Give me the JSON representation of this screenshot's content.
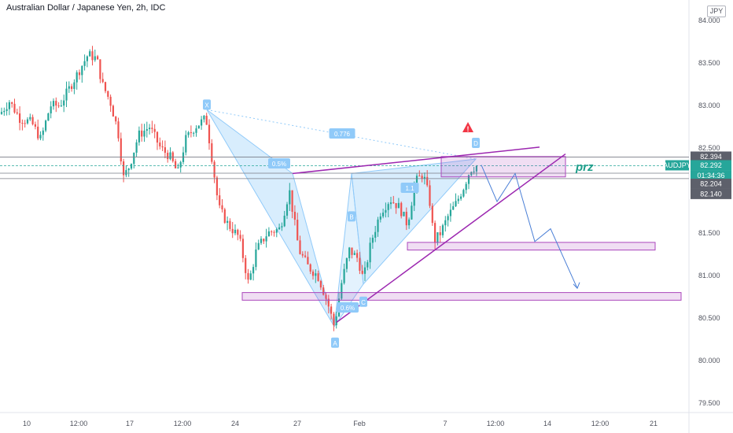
{
  "header": {
    "symbol_title": "Australian Dollar / Japanese Yen, 2h, IDC",
    "currency": "JPY"
  },
  "chart_data": {
    "type": "candlestick",
    "title": "Australian Dollar / Japanese Yen, 2h, IDC",
    "ylim": [
      79.35,
      84.1
    ],
    "y_ticks": [
      84.0,
      83.5,
      83.0,
      82.5,
      81.5,
      81.0,
      80.5,
      80.0,
      79.5
    ],
    "y_tick_labels": [
      "84.000",
      "83.500",
      "83.000",
      "82.500",
      "81.500",
      "81.000",
      "80.500",
      "80.000",
      "79.500"
    ],
    "x_tick_labels": [
      "10",
      "12:00",
      "17",
      "12:00",
      "24",
      "27",
      "Feb",
      "7",
      "12:00",
      "14",
      "12:00",
      "21"
    ],
    "price_lines": [
      82.394,
      82.292,
      82.204,
      82.14
    ],
    "price_labels": [
      {
        "text": "82.394",
        "value": 82.394,
        "color": "#5d606b"
      },
      {
        "text": "AUDJPY",
        "value": 82.292,
        "color": "#26a69a"
      },
      {
        "text": "82.292",
        "value": 82.292,
        "color": "#26a69a"
      },
      {
        "text": "01:34:36",
        "value": 82.292,
        "color": "#26a69a"
      },
      {
        "text": "82.204",
        "value": 82.204,
        "color": "#5d606b"
      },
      {
        "text": "82.140",
        "value": 82.14,
        "color": "#5d606b"
      }
    ],
    "pattern_points": [
      {
        "label": "X",
        "value": 82.95
      },
      {
        "label": "A",
        "value": 80.4
      },
      {
        "label": "B",
        "value": 82.2
      },
      {
        "label": "C",
        "value": 80.9
      },
      {
        "label": "D",
        "value": 82.37
      }
    ],
    "ratios": [
      "0.776",
      "0.5%",
      "0.6%",
      "1.1"
    ],
    "zones": [
      {
        "label": "prz",
        "top": 82.4,
        "bottom": 82.16
      },
      {
        "label": "",
        "top": 81.39,
        "bottom": 81.3
      },
      {
        "label": "",
        "top": 80.8,
        "bottom": 80.71
      }
    ],
    "colors": {
      "up": "#26a69a",
      "down": "#ef5350",
      "pattern": "#90caf9",
      "zone": "#ab47bc"
    },
    "warning_icon": "warning-icon"
  }
}
